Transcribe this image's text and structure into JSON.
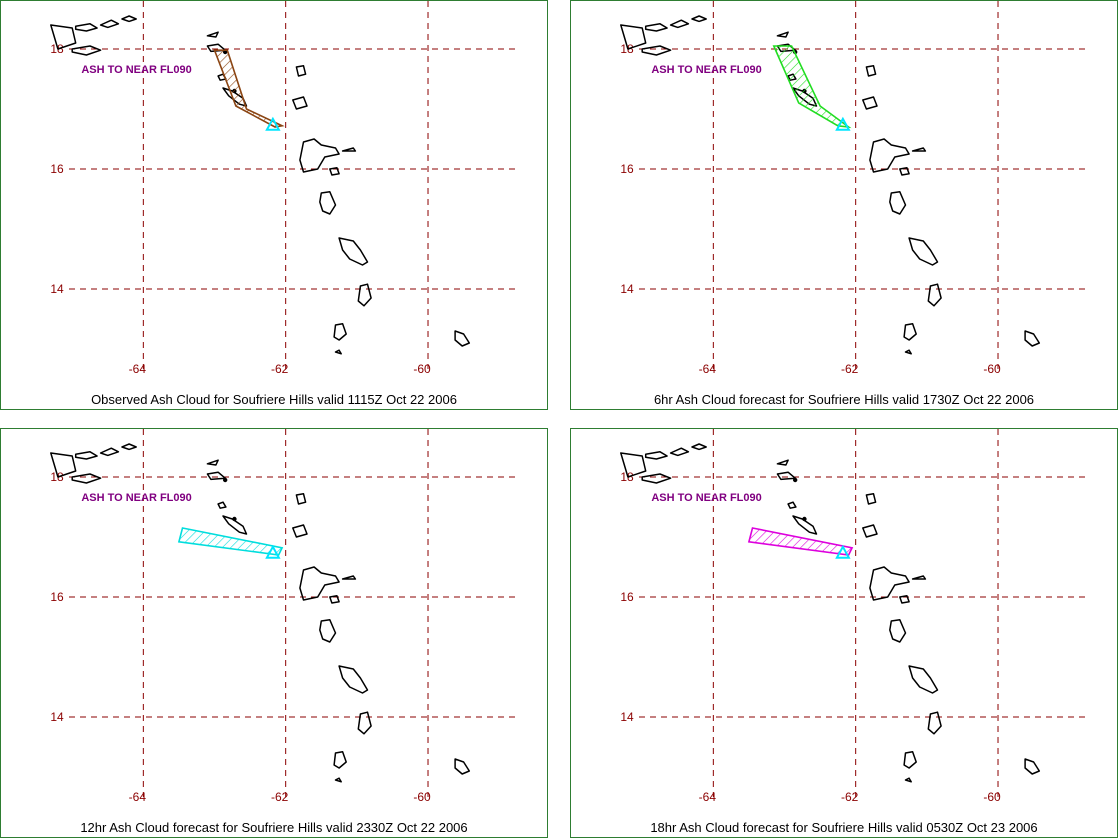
{
  "panels": [
    {
      "id": "observed",
      "caption": "Observed Ash Cloud for Soufriere  Hills valid 1115Z Oct 22 2006",
      "ash_label": "ASH TO NEAR FL090",
      "cloud_color": "#8b4513",
      "cloud_polygon": [
        [
          -63.0,
          17.98
        ],
        [
          -62.82,
          17.98
        ],
        [
          -62.55,
          17.0
        ],
        [
          -62.05,
          16.72
        ],
        [
          -62.15,
          16.7
        ],
        [
          -62.7,
          17.05
        ]
      ]
    },
    {
      "id": "forecast-6hr",
      "caption": "6hr Ash Cloud forecast for Soufriere  Hills valid 1730Z Oct 22 2006",
      "ash_label": "ASH TO NEAR FL090",
      "cloud_color": "#22dd22",
      "cloud_polygon": [
        [
          -63.15,
          18.05
        ],
        [
          -62.9,
          18.05
        ],
        [
          -62.5,
          17.05
        ],
        [
          -62.1,
          16.7
        ],
        [
          -62.25,
          16.72
        ],
        [
          -62.8,
          17.1
        ]
      ]
    },
    {
      "id": "forecast-12hr",
      "caption": "12hr Ash Cloud forecast for Soufriere  Hills valid 2330Z Oct 22 2006",
      "ash_label": "ASH TO NEAR FL090",
      "cloud_color": "#00dddd",
      "cloud_polygon": [
        [
          -63.45,
          17.15
        ],
        [
          -62.05,
          16.82
        ],
        [
          -62.1,
          16.7
        ],
        [
          -63.5,
          16.92
        ]
      ]
    },
    {
      "id": "forecast-18hr",
      "caption": "18hr Ash Cloud forecast for Soufriere  Hills valid 0530Z Oct 23 2006",
      "ash_label": "ASH TO NEAR FL090",
      "cloud_color": "#dd00dd",
      "cloud_polygon": [
        [
          -63.45,
          17.15
        ],
        [
          -62.05,
          16.82
        ],
        [
          -62.1,
          16.7
        ],
        [
          -63.5,
          16.92
        ]
      ]
    }
  ],
  "map": {
    "lon_ticks": [
      -64,
      -62,
      -60
    ],
    "lat_ticks": [
      18,
      16,
      14
    ],
    "lon_range": [
      -66.0,
      -58.3
    ],
    "lat_range": [
      12.3,
      18.8
    ],
    "grid_color": "#8b0000",
    "tick_color": "#8b0000",
    "coast_color": "#000000",
    "volcano_marker_color": "#00e5ff",
    "volcano": [
      -62.18,
      16.72
    ],
    "ash_label_position": [
      -64.0,
      17.6
    ]
  },
  "islands": [
    [
      [
        -64.95,
        18.38
      ],
      [
        -64.75,
        18.42
      ],
      [
        -64.65,
        18.35
      ],
      [
        -64.8,
        18.3
      ],
      [
        -64.95,
        18.33
      ]
    ],
    [
      [
        -64.6,
        18.4
      ],
      [
        -64.45,
        18.48
      ],
      [
        -64.35,
        18.42
      ],
      [
        -64.5,
        18.36
      ]
    ],
    [
      [
        -64.3,
        18.5
      ],
      [
        -64.2,
        18.55
      ],
      [
        -64.1,
        18.5
      ],
      [
        -64.2,
        18.46
      ]
    ],
    [
      [
        -65.0,
        18.0
      ],
      [
        -64.75,
        18.05
      ],
      [
        -64.6,
        17.98
      ],
      [
        -64.8,
        17.9
      ],
      [
        -65.0,
        17.95
      ]
    ],
    [
      [
        -63.1,
        18.22
      ],
      [
        -62.95,
        18.28
      ],
      [
        -62.98,
        18.2
      ]
    ],
    [
      [
        -63.1,
        18.05
      ],
      [
        -62.95,
        18.08
      ],
      [
        -62.85,
        17.98
      ],
      [
        -63.05,
        17.96
      ]
    ],
    [
      [
        -62.95,
        17.55
      ],
      [
        -62.88,
        17.58
      ],
      [
        -62.84,
        17.5
      ],
      [
        -62.92,
        17.48
      ]
    ],
    [
      [
        -62.88,
        17.35
      ],
      [
        -62.75,
        17.3
      ],
      [
        -62.6,
        17.18
      ],
      [
        -62.55,
        17.05
      ],
      [
        -62.65,
        17.08
      ],
      [
        -62.8,
        17.22
      ]
    ],
    [
      [
        -61.85,
        17.7
      ],
      [
        -61.75,
        17.72
      ],
      [
        -61.72,
        17.58
      ],
      [
        -61.82,
        17.55
      ]
    ],
    [
      [
        -61.9,
        17.15
      ],
      [
        -61.75,
        17.2
      ],
      [
        -61.7,
        17.05
      ],
      [
        -61.85,
        17.0
      ]
    ],
    [
      [
        -61.75,
        16.45
      ],
      [
        -61.6,
        16.5
      ],
      [
        -61.5,
        16.4
      ],
      [
        -61.3,
        16.35
      ],
      [
        -61.25,
        16.25
      ],
      [
        -61.45,
        16.2
      ],
      [
        -61.55,
        16.0
      ],
      [
        -61.75,
        15.95
      ],
      [
        -61.8,
        16.15
      ]
    ],
    [
      [
        -61.2,
        16.3
      ],
      [
        -61.05,
        16.35
      ],
      [
        -61.02,
        16.3
      ]
    ],
    [
      [
        -61.38,
        16.0
      ],
      [
        -61.28,
        16.02
      ],
      [
        -61.25,
        15.92
      ],
      [
        -61.35,
        15.9
      ]
    ],
    [
      [
        -61.5,
        15.6
      ],
      [
        -61.38,
        15.62
      ],
      [
        -61.3,
        15.4
      ],
      [
        -61.38,
        15.25
      ],
      [
        -61.48,
        15.3
      ],
      [
        -61.52,
        15.45
      ]
    ],
    [
      [
        -61.25,
        14.85
      ],
      [
        -61.05,
        14.8
      ],
      [
        -60.95,
        14.65
      ],
      [
        -60.85,
        14.45
      ],
      [
        -60.92,
        14.4
      ],
      [
        -61.1,
        14.5
      ],
      [
        -61.2,
        14.65
      ]
    ],
    [
      [
        -60.95,
        14.05
      ],
      [
        -60.85,
        14.08
      ],
      [
        -60.8,
        13.85
      ],
      [
        -60.9,
        13.72
      ],
      [
        -60.98,
        13.8
      ]
    ],
    [
      [
        -61.3,
        13.4
      ],
      [
        -61.2,
        13.42
      ],
      [
        -61.15,
        13.25
      ],
      [
        -61.25,
        13.15
      ],
      [
        -61.32,
        13.2
      ]
    ],
    [
      [
        -61.3,
        12.95
      ],
      [
        -61.25,
        12.98
      ],
      [
        -61.22,
        12.92
      ]
    ],
    [
      [
        -59.62,
        13.3
      ],
      [
        -59.5,
        13.25
      ],
      [
        -59.42,
        13.1
      ],
      [
        -59.52,
        13.05
      ],
      [
        -59.62,
        13.15
      ]
    ],
    [
      [
        -65.3,
        18.4
      ],
      [
        -65.0,
        18.35
      ],
      [
        -64.95,
        18.1
      ],
      [
        -65.2,
        18.0
      ]
    ]
  ]
}
